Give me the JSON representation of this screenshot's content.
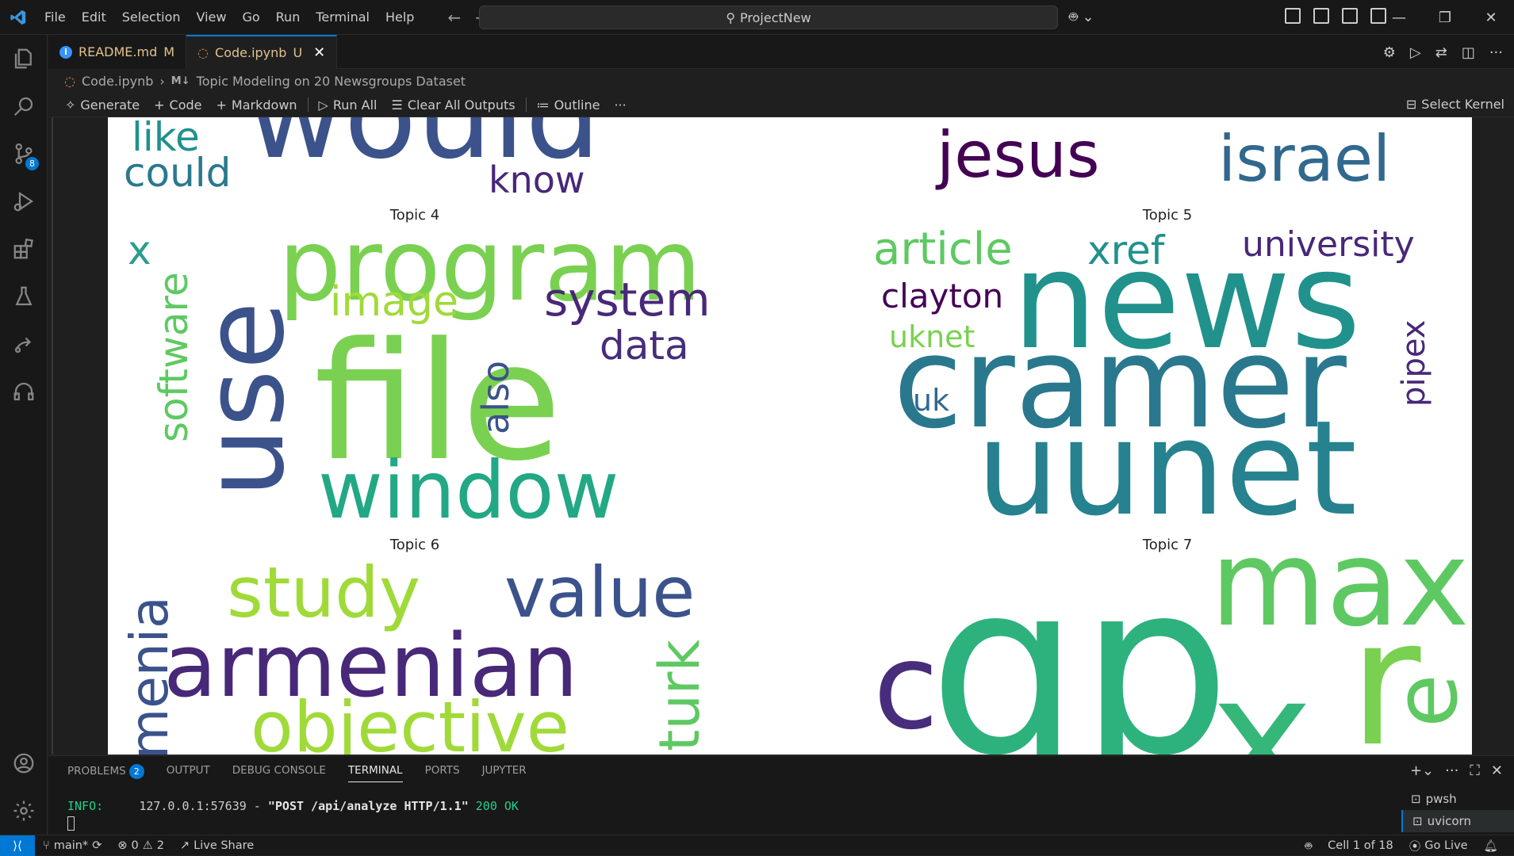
{
  "titlebar": {
    "menu": [
      "File",
      "Edit",
      "Selection",
      "View",
      "Go",
      "Run",
      "Terminal",
      "Help"
    ],
    "command_center": "ProjectNew"
  },
  "activity": {
    "scm_badge": "8"
  },
  "tabs": [
    {
      "label": "README.md",
      "status": "M"
    },
    {
      "label": "Code.ipynb",
      "status": "U"
    }
  ],
  "breadcrumb": {
    "file": "Code.ipynb",
    "section_icon": "M↓",
    "section": "Topic Modeling on 20 Newsgroups Dataset"
  },
  "toolbar": {
    "generate": "Generate",
    "code": "Code",
    "markdown": "Markdown",
    "run_all": "Run All",
    "clear_outputs": "Clear All Outputs",
    "outline": "Outline",
    "more": "···",
    "select_kernel": "Select Kernel"
  },
  "wordclouds": {
    "titles": [
      "Topic 4",
      "Topic 5",
      "Topic 6",
      "Topic 7"
    ],
    "top_left_words": [
      "would",
      "like",
      "could",
      "know"
    ],
    "top_right_words": [
      "jesus",
      "israel"
    ],
    "topic4": [
      "program",
      "use",
      "file",
      "window",
      "software",
      "image",
      "system",
      "data",
      "also",
      "x"
    ],
    "topic5": [
      "news",
      "cramer",
      "uunet",
      "article",
      "xref",
      "university",
      "clayton",
      "uknet",
      "uk",
      "pipex"
    ],
    "topic6": [
      "armenian",
      "study",
      "value",
      "objective",
      "turk",
      "menia"
    ],
    "topic7": [
      "qp",
      "max",
      "r",
      "x",
      "c",
      "e"
    ]
  },
  "panel": {
    "tabs": [
      "PROBLEMS",
      "OUTPUT",
      "DEBUG CONSOLE",
      "TERMINAL",
      "PORTS",
      "JUPYTER"
    ],
    "problems_count": "2",
    "terminal_line": {
      "level": "INFO:",
      "addr": "127.0.0.1:57639",
      "dash": " - ",
      "request": "\"POST /api/analyze HTTP/1.1\"",
      "status": "200 OK"
    },
    "terminals": [
      "pwsh",
      "uvicorn"
    ]
  },
  "statusbar": {
    "branch": "main*",
    "errors": "0",
    "warnings": "2",
    "live_share": "Live Share",
    "cell": "Cell 1 of 18",
    "go_live": "Go Live"
  },
  "colors": {
    "accent": "#0078d4",
    "status_bg": "#181818"
  }
}
